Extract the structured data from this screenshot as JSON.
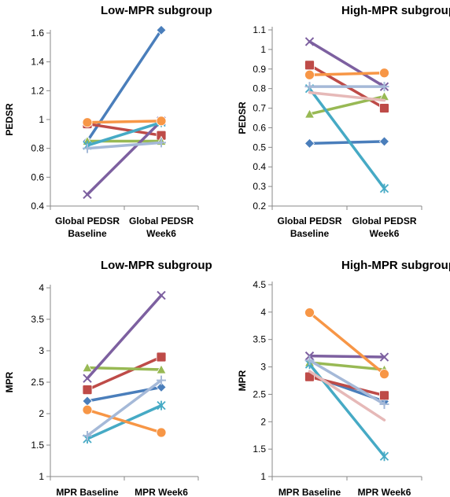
{
  "chart_data": [
    {
      "type": "line",
      "title": "Low-MPR subgroup",
      "ylabel": "PEDSR",
      "xlabel": "",
      "categories": [
        [
          "Global PEDSR",
          "Baseline"
        ],
        [
          "Global PEDSR",
          "Week6"
        ]
      ],
      "yticks": [
        "0.4",
        "0.6",
        "0.8",
        "1",
        "1.2",
        "1.4",
        "1.6"
      ],
      "ylim": [
        0.4,
        1.7
      ],
      "grid": false,
      "series": [
        {
          "color": "#4a7ebb",
          "marker": "diamond",
          "values": [
            0.85,
            1.62
          ]
        },
        {
          "color": "#be4b48",
          "marker": "square",
          "values": [
            0.97,
            0.89
          ]
        },
        {
          "color": "#98b954",
          "marker": "triangle",
          "values": [
            0.85,
            0.85
          ]
        },
        {
          "color": "#7d60a0",
          "marker": "x",
          "values": [
            0.48,
            0.99
          ]
        },
        {
          "color": "#46aac5",
          "marker": "star",
          "values": [
            0.82,
            0.98
          ]
        },
        {
          "color": "#f79646",
          "marker": "circle",
          "values": [
            0.98,
            0.99
          ]
        },
        {
          "color": "#a5b9d8",
          "marker": "plus",
          "values": [
            0.8,
            0.84
          ]
        }
      ]
    },
    {
      "type": "line",
      "title": "High-MPR subgroup",
      "ylabel": "PEDSR",
      "xlabel": "",
      "categories": [
        [
          "Global PEDSR",
          "Baseline"
        ],
        [
          "Global PEDSR",
          "Week6"
        ]
      ],
      "yticks": [
        "0.2",
        "0.3",
        "0.4",
        "0.5",
        "0.6",
        "0.7",
        "0.8",
        "0.9",
        "1",
        "1.1"
      ],
      "ylim": [
        0.2,
        1.1
      ],
      "grid": false,
      "series": [
        {
          "color": "#4a7ebb",
          "marker": "diamond",
          "values": [
            0.52,
            0.53
          ]
        },
        {
          "color": "#be4b48",
          "marker": "square",
          "values": [
            0.92,
            0.7
          ]
        },
        {
          "color": "#98b954",
          "marker": "triangle",
          "values": [
            0.67,
            0.76
          ]
        },
        {
          "color": "#7d60a0",
          "marker": "x",
          "values": [
            1.04,
            0.81
          ]
        },
        {
          "color": "#46aac5",
          "marker": "star",
          "values": [
            0.8,
            0.29
          ]
        },
        {
          "color": "#f79646",
          "marker": "circle",
          "values": [
            0.87,
            0.88
          ]
        },
        {
          "color": "#a5b9d8",
          "marker": "plus",
          "values": [
            0.81,
            0.81
          ]
        },
        {
          "color": "#e6b9b8",
          "marker": "none",
          "values": [
            0.78,
            0.74
          ]
        }
      ]
    },
    {
      "type": "line",
      "title": "Low-MPR subgroup",
      "ylabel": "MPR",
      "xlabel": "",
      "categories": [
        [
          "MPR Baseline"
        ],
        [
          "MPR Week6"
        ]
      ],
      "yticks": [
        "1",
        "1.5",
        "2",
        "2.5",
        "3",
        "3.5",
        "4"
      ],
      "ylim": [
        1,
        4
      ],
      "grid": false,
      "series": [
        {
          "color": "#4a7ebb",
          "marker": "diamond",
          "values": [
            2.2,
            2.42
          ]
        },
        {
          "color": "#be4b48",
          "marker": "square",
          "values": [
            2.38,
            2.9
          ]
        },
        {
          "color": "#98b954",
          "marker": "triangle",
          "values": [
            2.73,
            2.7
          ]
        },
        {
          "color": "#7d60a0",
          "marker": "x",
          "values": [
            2.56,
            3.88
          ]
        },
        {
          "color": "#46aac5",
          "marker": "star",
          "values": [
            1.6,
            2.13
          ]
        },
        {
          "color": "#f79646",
          "marker": "circle",
          "values": [
            2.06,
            1.7
          ]
        },
        {
          "color": "#a5b9d8",
          "marker": "plus",
          "values": [
            1.65,
            2.53
          ]
        }
      ]
    },
    {
      "type": "line",
      "title": "High-MPR subgroup",
      "ylabel": "MPR",
      "xlabel": "",
      "categories": [
        [
          "MPR Baseline"
        ],
        [
          "MPR Week6"
        ]
      ],
      "yticks": [
        "1",
        "1.5",
        "2",
        "2.5",
        "3",
        "3.5",
        "4",
        "4.5"
      ],
      "ylim": [
        1,
        4.5
      ],
      "grid": false,
      "series": [
        {
          "color": "#4a7ebb",
          "marker": "diamond",
          "values": [
            2.85,
            2.37
          ]
        },
        {
          "color": "#be4b48",
          "marker": "square",
          "values": [
            2.82,
            2.48
          ]
        },
        {
          "color": "#98b954",
          "marker": "triangle",
          "values": [
            3.08,
            2.95
          ]
        },
        {
          "color": "#7d60a0",
          "marker": "x",
          "values": [
            3.2,
            3.18
          ]
        },
        {
          "color": "#46aac5",
          "marker": "star",
          "values": [
            3.05,
            1.37
          ]
        },
        {
          "color": "#f79646",
          "marker": "circle",
          "values": [
            3.99,
            2.87
          ]
        },
        {
          "color": "#a5b9d8",
          "marker": "plus",
          "values": [
            3.12,
            2.32
          ]
        },
        {
          "color": "#e6b9b8",
          "marker": "none",
          "values": [
            2.92,
            2.03
          ]
        }
      ]
    }
  ]
}
